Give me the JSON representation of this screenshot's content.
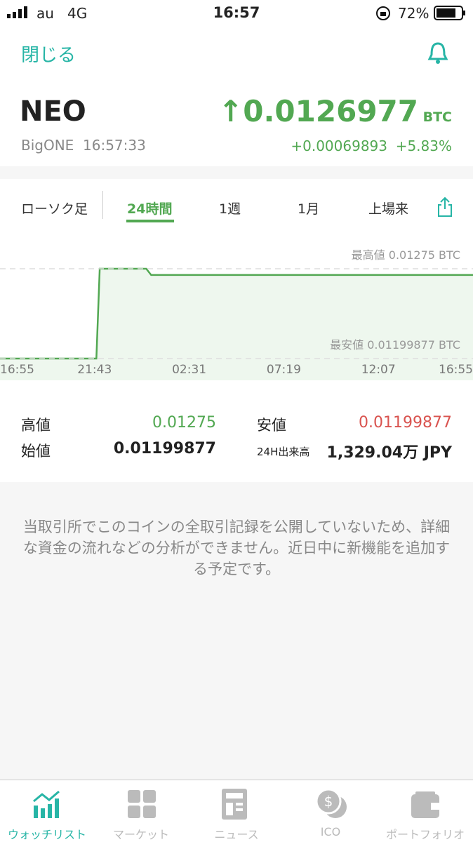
{
  "status_bar": {
    "carrier": "au",
    "network": "4G",
    "time": "16:57",
    "battery": "72%"
  },
  "header": {
    "close": "閉じる"
  },
  "ticker": {
    "symbol": "NEO",
    "price": "↑0.0126977",
    "unit": "BTC",
    "exchange": "BigONE",
    "time": "16:57:33",
    "change": "+0.00069893",
    "change_pct": "+5.83%"
  },
  "tabs": [
    "ローソク足",
    "24時間",
    "1週",
    "1月",
    "上場来"
  ],
  "chart_data": {
    "type": "line",
    "x": [
      0,
      4.89,
      5.06,
      7.42,
      7.67,
      24
    ],
    "series": [
      {
        "color": "#52a852",
        "values": [
          0.01199877,
          0.01199877,
          0.01275,
          0.01275,
          0.0126977,
          0.0126977
        ]
      }
    ],
    "xlim": [
      0,
      24
    ],
    "ylim": [
      0.011817,
      0.013002
    ],
    "xticks": [
      {
        "value": 0,
        "label": "16:55"
      },
      {
        "value": 4.8,
        "label": "21:43"
      },
      {
        "value": 9.6,
        "label": "02:31"
      },
      {
        "value": 14.4,
        "label": "07:19"
      },
      {
        "value": 19.2,
        "label": "12:07"
      },
      {
        "value": 24,
        "label": "16:55"
      }
    ],
    "annotations": [
      {
        "text": "最高値 0.01275 BTC",
        "value": 0.01275
      },
      {
        "text": "最安値 0.01199877 BTC",
        "value": 0.01199877
      }
    ]
  },
  "stats": {
    "high_label": "高値",
    "high": "0.01275",
    "low_label": "安値",
    "low": "0.01199877",
    "open_label": "始値",
    "open": "0.01199877",
    "volume_label": "24H出来高",
    "volume": "1,329.04万 JPY"
  },
  "notice": "当取引所でこのコインの全取引記録を公開していないため、詳細な資金の流れなどの分析ができません。近日中に新機能を追加する予定です。",
  "tab_bar": [
    "ウォッチリスト",
    "マーケット",
    "ニュース",
    "ICO",
    "ポートフォリオ"
  ]
}
